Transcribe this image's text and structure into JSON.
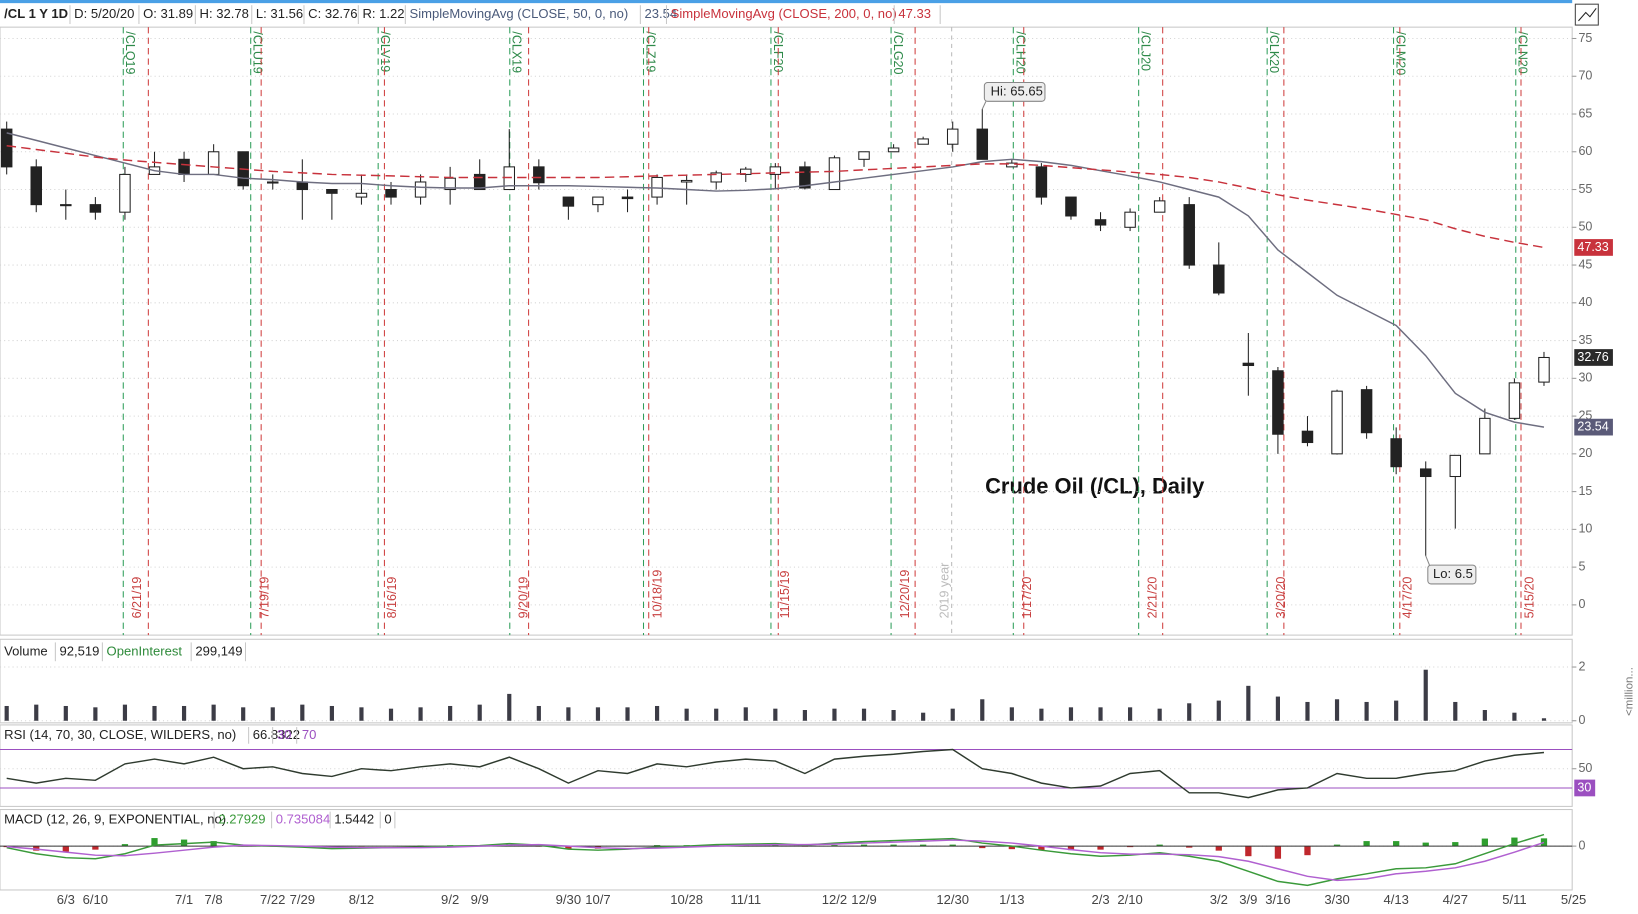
{
  "chart_data": [
    {
      "type": "candlestick",
      "title": "Crude Oil (/CL), Daily",
      "header": {
        "symbol": "/CL 1 Y 1D",
        "date": "D: 5/20/20",
        "open": "O: 31.89",
        "high": "H: 32.78",
        "low": "L: 31.56",
        "close": "C: 32.76",
        "range": "R: 1.22"
      },
      "categories": [
        null,
        null,
        "6/3",
        "6/10",
        null,
        null,
        "7/1",
        "7/8",
        null,
        "7/22",
        "7/29",
        null,
        "8/12",
        null,
        null,
        "9/2",
        "9/9",
        null,
        null,
        "9/30",
        "10/7",
        null,
        null,
        "10/28",
        null,
        "11/11",
        null,
        null,
        "12/2",
        "12/9",
        null,
        null,
        "12/30",
        null,
        "1/13",
        null,
        null,
        "2/3",
        "2/10",
        null,
        null,
        "3/2",
        "3/9",
        "3/16",
        null,
        "3/30",
        null,
        "4/13",
        null,
        "4/27",
        null,
        "5/11",
        null,
        "5/25"
      ],
      "open": [
        63,
        58,
        53,
        53,
        52,
        57,
        59,
        57,
        60,
        56,
        56,
        55,
        54,
        55,
        54,
        55,
        57,
        55,
        58,
        54,
        53,
        54,
        54,
        56,
        56,
        57,
        57,
        58,
        55,
        59,
        60,
        61,
        61,
        63,
        58,
        58,
        54,
        51,
        50,
        52,
        53,
        45,
        32,
        31,
        23,
        20,
        28.5,
        22,
        18,
        17,
        20,
        24.7,
        29.5,
        null
      ],
      "high": [
        64,
        59,
        55,
        54,
        58,
        60,
        60,
        61,
        60,
        57,
        59,
        55,
        57,
        56,
        57,
        58,
        59,
        63,
        59,
        54,
        54,
        55,
        57,
        57,
        57.5,
        58,
        58.5,
        58.7,
        59.5,
        60,
        61,
        62,
        64,
        65.65,
        59,
        58.5,
        54,
        52,
        52.5,
        54,
        54,
        48,
        36,
        31.5,
        25,
        28.5,
        29,
        23.5,
        19,
        19,
        26,
        30,
        33.5,
        null
      ],
      "low": [
        57,
        52,
        51,
        51,
        51,
        57,
        56,
        57,
        55,
        55,
        51,
        51,
        53,
        53,
        53,
        53,
        55,
        55,
        55,
        51,
        52,
        52,
        53,
        53,
        55,
        56,
        55,
        55,
        55,
        58,
        60,
        61,
        60,
        59,
        58,
        53,
        51,
        49.5,
        49.5,
        52,
        44.5,
        41,
        27.7,
        20,
        21,
        19.9,
        22,
        17.3,
        6.5,
        10.1,
        20,
        24.5,
        29,
        null
      ],
      "close": [
        58,
        53,
        53,
        52,
        57,
        58,
        57,
        60,
        55.5,
        56,
        55,
        54.5,
        54.5,
        54,
        56,
        56.5,
        55,
        58,
        55.9,
        52.8,
        54,
        53.8,
        56.6,
        56.2,
        57.2,
        57.7,
        58,
        55.2,
        59.2,
        60,
        60.5,
        61.7,
        63,
        59,
        58.5,
        54,
        51.5,
        50.3,
        52,
        53.5,
        45,
        41.3,
        31.7,
        22.6,
        21.5,
        28.3,
        22.8,
        18.3,
        17,
        19.8,
        24.7,
        29.4,
        32.76,
        null
      ],
      "series": [
        {
          "name": "SimpleMovingAvg (CLOSE, 50, 0, no)",
          "color": "#6e6e80",
          "values": [
            62.5,
            61.5,
            60.5,
            59.5,
            58.5,
            57.5,
            57,
            57,
            56.5,
            56.3,
            56,
            55.8,
            55.8,
            55.5,
            55.3,
            55.2,
            55.2,
            55.5,
            55.5,
            55.5,
            55.4,
            55.3,
            55.2,
            55,
            54.8,
            54.9,
            55.1,
            55.5,
            56,
            56.5,
            57,
            57.5,
            58,
            58.7,
            59,
            58.7,
            58.2,
            57.5,
            56.8,
            56,
            55,
            54,
            51.5,
            47,
            44,
            41,
            39,
            37,
            33,
            28,
            25.5,
            24.2,
            23.54,
            null
          ]
        },
        {
          "name": "SimpleMovingAvg (CLOSE, 200, 0, no)",
          "color": "#c8323c",
          "values": [
            60.8,
            60.3,
            59.8,
            59.3,
            58.9,
            58.6,
            58.3,
            58,
            57.7,
            57.4,
            57.2,
            57,
            56.9,
            56.8,
            56.7,
            56.6,
            56.6,
            56.6,
            56.6,
            56.6,
            56.6,
            56.7,
            56.8,
            56.9,
            57,
            57.1,
            57.2,
            57.3,
            57.4,
            57.6,
            57.8,
            58,
            58.2,
            58.4,
            58.4,
            58.2,
            57.9,
            57.6,
            57.3,
            57,
            56.6,
            56,
            55.2,
            54.3,
            53.6,
            53,
            52.4,
            51.7,
            51,
            49.8,
            48.8,
            48,
            47.33,
            null
          ]
        }
      ],
      "annotations": {
        "high": "Hi: 65.65",
        "low": "Lo: 6.5"
      },
      "contracts": [
        "/CLQ19",
        "/CLU19",
        "/CLV19",
        "/CLX19",
        "/CLZ19",
        "/CLF20",
        "/CLG20",
        "/CLH20",
        "/CLJ20",
        "/CLK20",
        "/CLM20",
        "/CLN20"
      ],
      "expirations": [
        "6/21/19",
        "7/19/19",
        "8/16/19",
        "9/20/19",
        "10/18/19",
        "11/15/19",
        "12/20/19",
        "1/17/20",
        "2/21/20",
        "3/20/20",
        "4/17/20",
        "5/15/20"
      ],
      "year_marker": "2019 year",
      "ylim": [
        -4,
        76.5
      ],
      "yticks": [
        0,
        5,
        10,
        15,
        20,
        25,
        30,
        35,
        40,
        45,
        50,
        55,
        60,
        65,
        70,
        75
      ],
      "grid": true
    },
    {
      "type": "bar",
      "title": "Volume",
      "value_label": "92,519",
      "open_interest_label": "OpenInterest",
      "open_interest": "299,149",
      "y_label": "<million...",
      "color": "#3c3c46",
      "values": [
        0.55,
        0.6,
        0.55,
        0.5,
        0.6,
        0.55,
        0.55,
        0.6,
        0.5,
        0.5,
        0.6,
        0.55,
        0.5,
        0.45,
        0.5,
        0.55,
        0.6,
        1.0,
        0.55,
        0.5,
        0.5,
        0.5,
        0.55,
        0.45,
        0.45,
        0.5,
        0.45,
        0.4,
        0.45,
        0.45,
        0.4,
        0.3,
        0.45,
        0.8,
        0.5,
        0.45,
        0.5,
        0.5,
        0.5,
        0.45,
        0.65,
        0.75,
        1.3,
        0.9,
        0.7,
        0.8,
        0.7,
        0.75,
        1.9,
        0.7,
        0.4,
        0.3,
        0.092519,
        null
      ],
      "ylim": [
        0,
        2.1
      ],
      "yticks": [
        0,
        2
      ]
    },
    {
      "type": "line",
      "title": "RSI (14, 70, 30, CLOSE, WILDERS, no)",
      "color": "#2f3b2f",
      "values": [
        40,
        35,
        40,
        38,
        55,
        60,
        55,
        62,
        50,
        52,
        45,
        42,
        50,
        48,
        52,
        55,
        52,
        62,
        50,
        35,
        48,
        45,
        55,
        52,
        57,
        60,
        58,
        45,
        60,
        63,
        65,
        68,
        70,
        50,
        45,
        35,
        30,
        32,
        45,
        48,
        25,
        25,
        20,
        28,
        30,
        45,
        40,
        40,
        45,
        48,
        58,
        64,
        66.8322,
        null
      ],
      "levels": [
        30,
        70
      ],
      "level_color": "#9b4fc0",
      "ylim": [
        13,
        76
      ],
      "yticks": [
        50
      ]
    },
    {
      "type": "macd",
      "title": "MACD (12, 26, 9, EXPONENTIAL, no)",
      "series": [
        {
          "color": "#3a9a3a",
          "values": [
            -0.3,
            -1.5,
            -2.3,
            -2.5,
            -1.5,
            0.2,
            0.5,
            0.8,
            0.2,
            0,
            -0.2,
            -0.5,
            -0.4,
            -0.3,
            -0.2,
            0,
            0.1,
            0.5,
            0.2,
            -0.6,
            -0.8,
            -0.6,
            -0.2,
            0,
            0.3,
            0.4,
            0.5,
            0.2,
            0.6,
            0.9,
            1.1,
            1.3,
            1.5,
            0.6,
            0,
            -0.8,
            -1.5,
            -2,
            -1.8,
            -1.3,
            -2,
            -3,
            -5,
            -7,
            -7.8,
            -6.5,
            -5.5,
            -4.5,
            -4.3,
            -3.5,
            -1.5,
            0.5,
            2.27929,
            null
          ]
        },
        {
          "color": "#b060d0",
          "values": [
            -0.1,
            -0.6,
            -1.2,
            -1.8,
            -1.9,
            -1.4,
            -0.8,
            -0.2,
            0.2,
            0.1,
            0,
            -0.2,
            -0.3,
            -0.3,
            -0.3,
            -0.2,
            0,
            0.2,
            0.3,
            0,
            -0.3,
            -0.5,
            -0.4,
            -0.2,
            0,
            0.2,
            0.3,
            0.3,
            0.4,
            0.6,
            0.8,
            1,
            1.2,
            1,
            0.6,
            0,
            -0.7,
            -1.3,
            -1.6,
            -1.6,
            -1.7,
            -2.1,
            -3,
            -4.5,
            -6,
            -6.8,
            -6.5,
            -5.5,
            -5,
            -4.3,
            -3,
            -1.2,
            0.735084,
            null
          ]
        },
        {
          "color": "#2e9e2e",
          "negative_color": "#c0282d",
          "values": [
            -0.2,
            -0.9,
            -1.1,
            -0.7,
            0.4,
            1.6,
            1.3,
            1.0,
            0,
            -0.1,
            -0.2,
            -0.3,
            -0.1,
            0,
            0.1,
            0.2,
            0.1,
            0.3,
            -0.1,
            -0.6,
            -0.5,
            -0.1,
            0.2,
            0.2,
            0.3,
            0.2,
            0.2,
            -0.1,
            0.2,
            0.3,
            0.3,
            0.3,
            0.3,
            -0.4,
            -0.6,
            -0.8,
            -0.8,
            -0.7,
            -0.2,
            0.3,
            -0.3,
            -0.9,
            -2,
            -2.5,
            -1.8,
            0.3,
            1,
            1,
            0.7,
            0.8,
            1.5,
            1.7,
            1.5442,
            null
          ]
        }
      ],
      "ylim": [
        -8.5,
        2.7
      ],
      "yticks": [
        0
      ]
    }
  ]
}
